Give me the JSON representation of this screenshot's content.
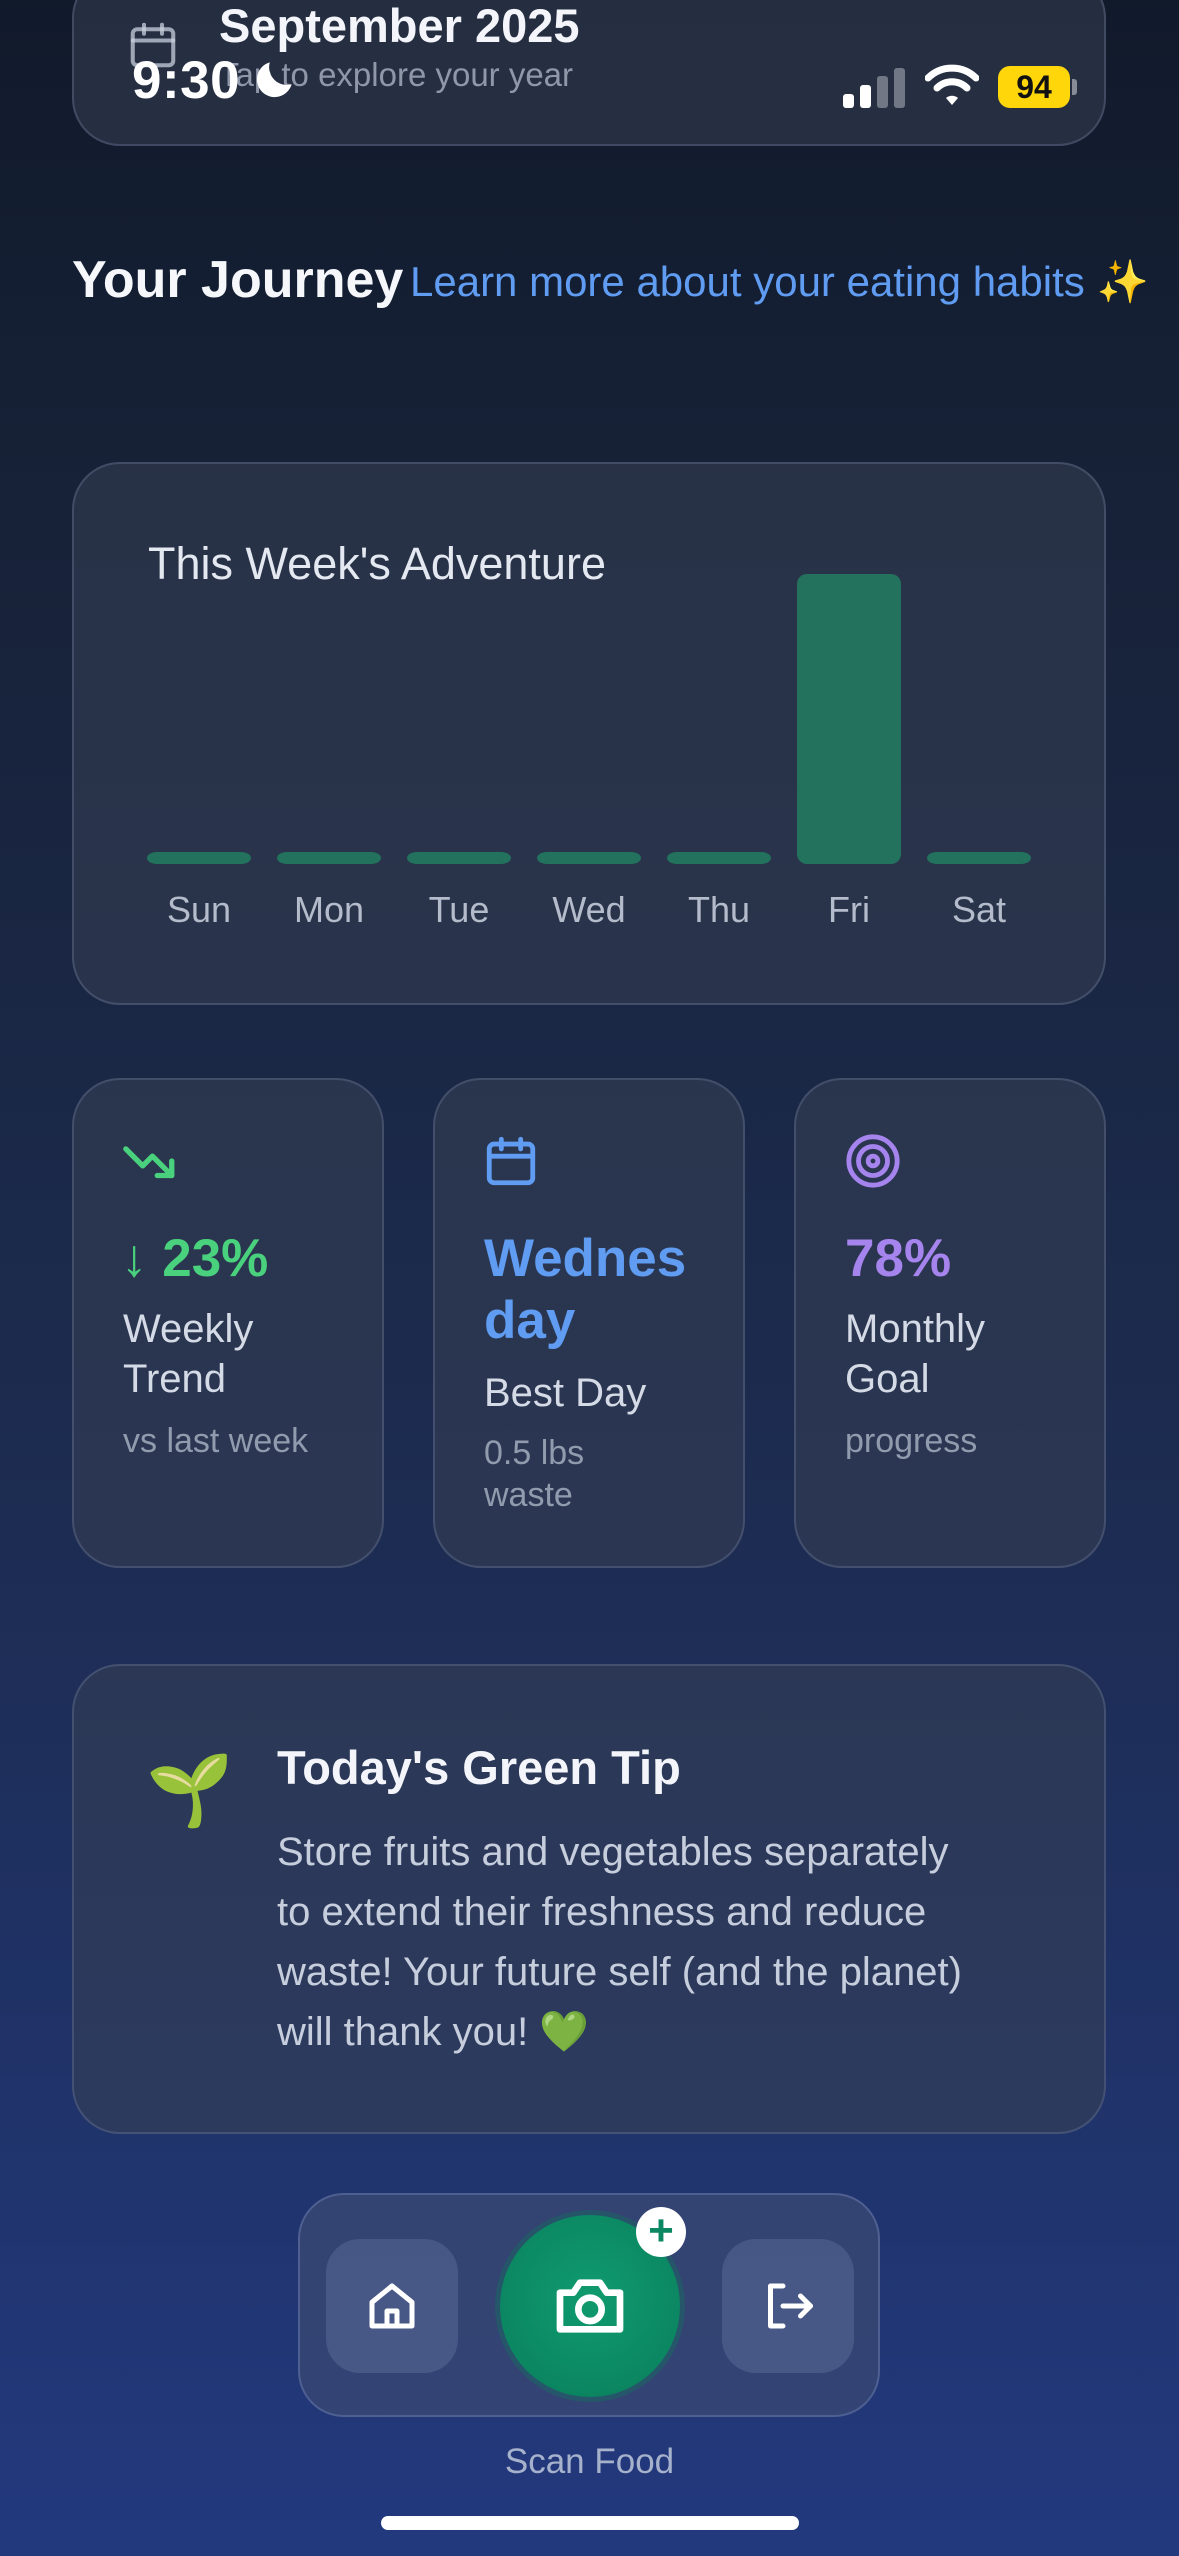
{
  "status_bar": {
    "time": "9:30",
    "battery": "94"
  },
  "month_card": {
    "title": "September 2025",
    "subtitle": "Tap to explore your year"
  },
  "header": {
    "title": "Your Journey",
    "link": "Learn more about your eating habits ✨"
  },
  "chart_data": {
    "type": "bar",
    "title": "This Week's Adventure",
    "categories": [
      "Sun",
      "Mon",
      "Tue",
      "Wed",
      "Thu",
      "Fri",
      "Sat"
    ],
    "values": [
      0.04,
      0.04,
      0.04,
      0.04,
      0.04,
      1.0,
      0.04
    ],
    "color": "#23725e",
    "grid": false
  },
  "stats": [
    {
      "icon": "trending-down-icon",
      "value": "↓ 23%",
      "label_lines": [
        "Weekly",
        "Trend"
      ],
      "sub_lines": [
        "vs last week"
      ],
      "color": "#49d17d"
    },
    {
      "icon": "calendar-icon",
      "value_lines": [
        "Wednes",
        "day"
      ],
      "label_lines": [
        "Best Day"
      ],
      "sub_lines": [
        "0.5 lbs",
        "waste"
      ],
      "color": "#5f9cf2"
    },
    {
      "icon": "target-icon",
      "value": "78%",
      "label_lines": [
        "Monthly",
        "Goal"
      ],
      "sub_lines": [
        "progress"
      ],
      "color": "#a684ee"
    }
  ],
  "tip": {
    "emoji": "🌱",
    "title": "Today's Green Tip",
    "body_lines": [
      "Store fruits and vegetables separately",
      "to extend their freshness and reduce",
      "waste! Your future self (and the planet)",
      "will thank you! 💚"
    ]
  },
  "nav": {
    "scan_label": "Scan Food",
    "plus": "+"
  }
}
